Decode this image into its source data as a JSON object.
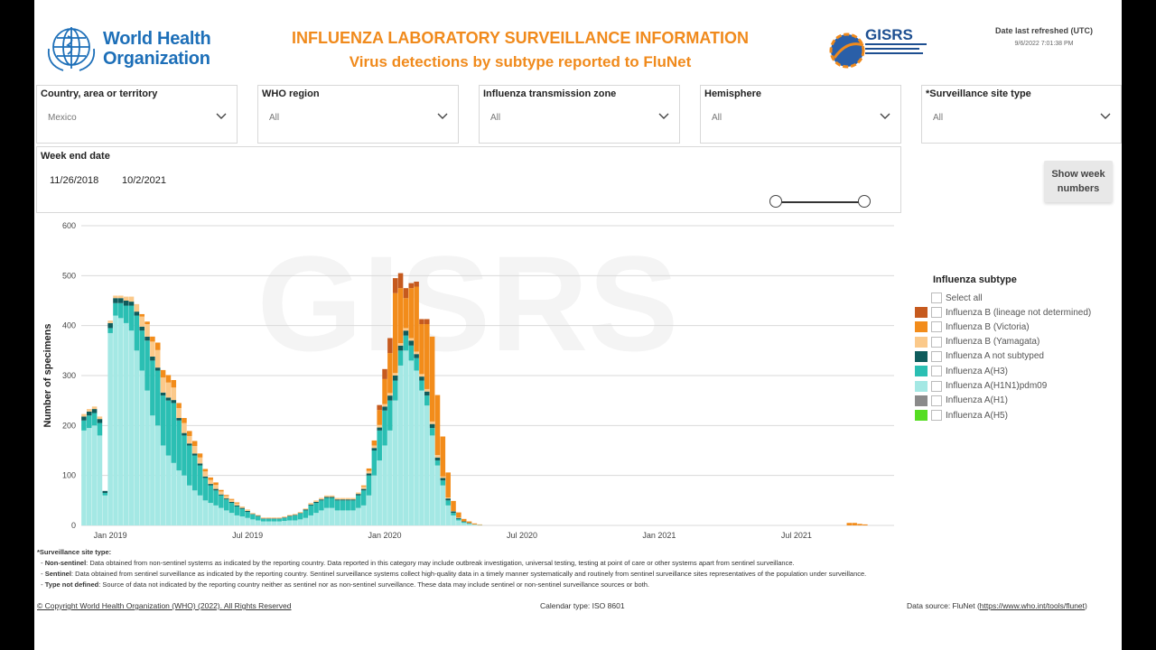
{
  "header": {
    "org_name_line1": "World Health",
    "org_name_line2": "Organization",
    "title": "INFLUENZA LABORATORY SURVEILLANCE INFORMATION",
    "subtitle": "Virus detections by subtype reported to FluNet",
    "gisrs_logo": "GISRS",
    "refresh_label": "Date last refreshed (UTC)",
    "refresh_value": "9/6/2022 7:01:38 PM",
    "accent_color": "#f08a1c",
    "who_blue": "#1d6fb8"
  },
  "filters": [
    {
      "label": "Country, area or territory",
      "value": "Mexico"
    },
    {
      "label": "WHO region",
      "value": "All"
    },
    {
      "label": "Influenza transmission zone",
      "value": "All"
    },
    {
      "label": "Hemisphere",
      "value": "All"
    },
    {
      "label": "*Surveillance site type",
      "value": "All"
    }
  ],
  "week_filter": {
    "label": "Week end date",
    "start": "11/26/2018",
    "end": "10/2/2021",
    "start_fraction": 0.0,
    "end_fraction": 1.0
  },
  "show_week_button": "Show week numbers",
  "legend": {
    "title": "Influenza subtype",
    "select_all": "Select all",
    "items": [
      {
        "label": "Influenza B (lineage not determined)",
        "color": "#c65a1e"
      },
      {
        "label": "Influenza B (Victoria)",
        "color": "#f28c1b"
      },
      {
        "label": "Influenza B (Yamagata)",
        "color": "#fbc98a"
      },
      {
        "label": "Influenza A not subtyped",
        "color": "#0f5c5c"
      },
      {
        "label": "Influenza A(H3)",
        "color": "#2bbfb3"
      },
      {
        "label": "Influenza A(H1N1)pdm09",
        "color": "#a4e8e4"
      },
      {
        "label": "Influenza A(H1)",
        "color": "#8a8a8a"
      },
      {
        "label": "Influenza A(H5)",
        "color": "#55dd22"
      }
    ]
  },
  "watermark": "GISRS",
  "chart_data": {
    "type": "bar",
    "stacked": true,
    "ylabel": "Number of specimens",
    "xlabel": "",
    "ylim": [
      0,
      600
    ],
    "yticks": [
      0,
      100,
      200,
      300,
      400,
      500,
      600
    ],
    "xtick_labels": [
      "Jan 2019",
      "Jul 2019",
      "Jan 2020",
      "Jul 2020",
      "Jan 2021",
      "Jul 2021"
    ],
    "xtick_week_index": [
      5,
      31,
      57,
      83,
      109,
      135
    ],
    "grid": true,
    "legend_position": "right",
    "series": [
      {
        "name": "Influenza A(H1N1)pdm09",
        "values": [
          190,
          195,
          200,
          180,
          60,
          385,
          420,
          415,
          405,
          390,
          350,
          310,
          270,
          220,
          200,
          160,
          140,
          125,
          110,
          100,
          80,
          70,
          60,
          50,
          45,
          40,
          35,
          30,
          25,
          20,
          18,
          15,
          12,
          10,
          8,
          8,
          8,
          8,
          9,
          10,
          10,
          12,
          15,
          20,
          25,
          30,
          35,
          35,
          30,
          30,
          30,
          30,
          35,
          40,
          60,
          100,
          130,
          160,
          190,
          250,
          320,
          350,
          330,
          310,
          270,
          240,
          180,
          120,
          80,
          40,
          20,
          10,
          5,
          3,
          2,
          1,
          0,
          0,
          0,
          0,
          0,
          0,
          0,
          0,
          0,
          0,
          0,
          0,
          0,
          0,
          0,
          0,
          0,
          0,
          0,
          0,
          0,
          0,
          0,
          0,
          0,
          0,
          0,
          0,
          0,
          0,
          0,
          0,
          0,
          0,
          0,
          0,
          0,
          0,
          0,
          0,
          0,
          0,
          0,
          0,
          0,
          0,
          0,
          0,
          0,
          0,
          0,
          0,
          0,
          0,
          0,
          0,
          0,
          0,
          0,
          0,
          0,
          0,
          0,
          0,
          0,
          0,
          0,
          0,
          0,
          0,
          0,
          0,
          0,
          0,
          0,
          0,
          0,
          0
        ]
      },
      {
        "name": "Influenza A(H3)",
        "values": [
          20,
          25,
          25,
          25,
          5,
          10,
          25,
          30,
          35,
          50,
          70,
          80,
          100,
          110,
          110,
          100,
          110,
          120,
          100,
          80,
          80,
          70,
          60,
          45,
          35,
          30,
          25,
          22,
          20,
          18,
          15,
          12,
          10,
          8,
          5,
          5,
          5,
          5,
          6,
          8,
          10,
          12,
          15,
          20,
          20,
          20,
          20,
          20,
          20,
          20,
          20,
          20,
          25,
          30,
          40,
          50,
          60,
          70,
          60,
          40,
          30,
          30,
          30,
          25,
          20,
          20,
          15,
          10,
          10,
          10,
          5,
          3,
          2,
          1,
          0,
          0,
          0,
          0,
          0,
          0,
          0,
          0,
          0,
          0,
          0,
          0,
          0,
          0,
          0,
          0,
          0,
          0,
          0,
          0,
          0,
          0,
          0,
          0,
          0,
          0,
          0,
          0,
          0,
          0,
          0,
          0,
          0,
          0,
          0,
          0,
          0,
          0,
          0,
          0,
          0,
          0,
          0,
          0,
          0,
          0,
          0,
          0,
          0,
          0,
          0,
          0,
          0,
          0,
          0,
          0,
          0,
          0,
          0,
          0,
          0,
          0,
          0,
          0,
          0,
          0,
          0,
          0,
          0,
          0,
          0,
          0,
          0,
          0,
          0,
          0,
          0,
          0,
          0,
          0
        ]
      },
      {
        "name": "Influenza A not subtyped",
        "values": [
          8,
          8,
          8,
          8,
          4,
          10,
          10,
          10,
          10,
          8,
          8,
          8,
          8,
          8,
          6,
          6,
          6,
          6,
          5,
          5,
          4,
          4,
          4,
          3,
          3,
          3,
          2,
          2,
          2,
          2,
          2,
          2,
          1,
          1,
          1,
          1,
          1,
          1,
          1,
          1,
          1,
          1,
          2,
          2,
          2,
          2,
          2,
          2,
          2,
          2,
          2,
          2,
          3,
          3,
          4,
          5,
          6,
          8,
          10,
          10,
          10,
          10,
          10,
          8,
          8,
          8,
          8,
          6,
          5,
          4,
          3,
          2,
          1,
          1,
          0,
          0,
          0,
          0,
          0,
          0,
          0,
          0,
          0,
          0,
          0,
          0,
          0,
          0,
          0,
          0,
          0,
          0,
          0,
          0,
          0,
          0,
          0,
          0,
          0,
          0,
          0,
          0,
          0,
          0,
          0,
          0,
          0,
          0,
          0,
          0,
          0,
          0,
          0,
          0,
          0,
          0,
          0,
          0,
          0,
          0,
          0,
          0,
          0,
          0,
          0,
          0,
          0,
          0,
          0,
          0,
          0,
          0,
          0,
          0,
          0,
          0,
          0,
          0,
          0,
          0,
          0,
          0,
          0,
          0,
          0,
          0,
          0,
          0,
          0,
          0,
          0,
          0,
          0,
          0
        ]
      },
      {
        "name": "Influenza B (Yamagata)",
        "values": [
          5,
          5,
          5,
          5,
          0,
          5,
          5,
          5,
          8,
          10,
          15,
          20,
          25,
          30,
          35,
          30,
          30,
          25,
          20,
          20,
          15,
          15,
          12,
          10,
          8,
          8,
          6,
          5,
          4,
          4,
          3,
          3,
          2,
          2,
          2,
          2,
          2,
          2,
          2,
          2,
          2,
          2,
          2,
          3,
          3,
          3,
          3,
          3,
          3,
          3,
          3,
          3,
          3,
          5,
          5,
          5,
          5,
          5,
          5,
          5,
          5,
          5,
          5,
          5,
          5,
          5,
          5,
          5,
          3,
          2,
          1,
          1,
          0,
          0,
          0,
          0,
          0,
          0,
          0,
          0,
          0,
          0,
          0,
          0,
          0,
          0,
          0,
          0,
          0,
          0,
          0,
          0,
          0,
          0,
          0,
          0,
          0,
          0,
          0,
          0,
          0,
          0,
          0,
          0,
          0,
          0,
          0,
          0,
          0,
          0,
          0,
          0,
          0,
          0,
          0,
          0,
          0,
          0,
          0,
          0,
          0,
          0,
          0,
          0,
          0,
          0,
          0,
          0,
          0,
          0,
          0,
          0,
          0,
          0,
          0,
          0,
          0,
          0,
          0,
          0,
          0,
          0,
          0,
          0,
          0,
          0,
          0,
          0,
          0,
          0,
          0,
          0,
          0,
          0
        ]
      },
      {
        "name": "Influenza B (Victoria)",
        "values": [
          0,
          0,
          0,
          0,
          0,
          0,
          0,
          0,
          0,
          0,
          0,
          5,
          5,
          10,
          15,
          15,
          15,
          15,
          10,
          10,
          10,
          10,
          8,
          5,
          5,
          5,
          3,
          2,
          2,
          2,
          0,
          0,
          0,
          0,
          0,
          0,
          0,
          0,
          0,
          0,
          0,
          0,
          0,
          0,
          0,
          0,
          0,
          0,
          0,
          0,
          0,
          0,
          0,
          2,
          5,
          10,
          30,
          50,
          80,
          160,
          110,
          60,
          100,
          130,
          100,
          130,
          170,
          120,
          80,
          50,
          20,
          10,
          5,
          3,
          2,
          1,
          0,
          0,
          0,
          0,
          0,
          0,
          0,
          0,
          0,
          0,
          0,
          0,
          0,
          0,
          0,
          0,
          0,
          0,
          0,
          0,
          0,
          0,
          0,
          0,
          0,
          0,
          0,
          0,
          0,
          0,
          0,
          0,
          0,
          0,
          0,
          0,
          0,
          0,
          0,
          0,
          0,
          0,
          0,
          0,
          0,
          0,
          0,
          0,
          0,
          0,
          0,
          0,
          0,
          0,
          0,
          0,
          0,
          0,
          0,
          0,
          0,
          0,
          0,
          0,
          0,
          0,
          0,
          0,
          0,
          5,
          5,
          3,
          2,
          0,
          0,
          0,
          0,
          0
        ]
      },
      {
        "name": "Influenza B (lineage not determined)",
        "values": [
          0,
          0,
          0,
          0,
          0,
          0,
          0,
          0,
          0,
          0,
          0,
          0,
          0,
          0,
          0,
          0,
          0,
          0,
          0,
          0,
          0,
          0,
          0,
          0,
          0,
          0,
          0,
          0,
          0,
          0,
          0,
          0,
          0,
          0,
          0,
          0,
          0,
          0,
          0,
          0,
          0,
          0,
          0,
          0,
          0,
          0,
          0,
          0,
          0,
          0,
          0,
          0,
          0,
          0,
          0,
          0,
          10,
          20,
          30,
          30,
          30,
          20,
          10,
          10,
          10,
          10,
          0,
          0,
          0,
          0,
          0,
          0,
          0,
          0,
          0,
          0,
          0,
          0,
          0,
          0,
          0,
          0,
          0,
          0,
          0,
          0,
          0,
          0,
          0,
          0,
          0,
          0,
          0,
          0,
          0,
          0,
          0,
          0,
          0,
          0,
          0,
          0,
          0,
          0,
          0,
          0,
          0,
          0,
          0,
          0,
          0,
          0,
          0,
          0,
          0,
          0,
          0,
          0,
          0,
          0,
          0,
          0,
          0,
          0,
          0,
          0,
          0,
          0,
          0,
          0,
          0,
          0,
          0,
          0,
          0,
          0,
          0,
          0,
          0,
          0,
          0,
          0,
          0,
          0,
          0,
          0,
          0,
          0,
          0,
          0,
          0,
          0,
          0,
          0
        ]
      }
    ]
  },
  "notes": {
    "title": "*Surveillance site type:",
    "line1_bold": "Non-sentinel",
    "line1_text": ": Data obtained from non-sentinel systems as indicated by the reporting country. Data reported in this category may include outbreak investigation, universal testing, testing at point of care or other systems apart from sentinel surveillance.",
    "line2_bold": "Sentinel",
    "line2_text": ": Data obtained from sentinel surveillance as indicated by the reporting country. Sentinel surveillance systems collect high-quality data in a timely manner systematically and routinely from sentinel surveillance sites representatives of the population under surveillance.",
    "line3_bold": "Type not defined",
    "line3_text": ": Source of data not indicated by the reporting country neither as sentinel nor as non-sentinel surveillance. These data may include sentinel or non-sentinel surveillance sources or both."
  },
  "footer": {
    "copyright": "© Copyright World Health Organization (WHO) (2022). All Rights Reserved",
    "calendar": "Calendar type: ISO 8601",
    "source_prefix": "Data source: FluNet (",
    "source_link": "https://www.who.int/tools/flunet",
    "source_suffix": ")"
  }
}
